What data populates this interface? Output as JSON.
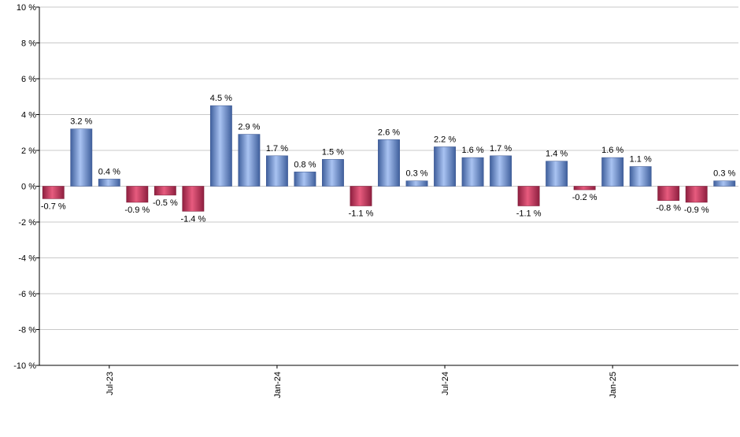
{
  "chart_data": {
    "type": "bar",
    "title": "",
    "xlabel": "",
    "ylabel": "",
    "ylim": [
      -10,
      10
    ],
    "y_ticks": [
      -10,
      -8,
      -6,
      -4,
      -2,
      0,
      2,
      4,
      6,
      8,
      10
    ],
    "y_tick_suffix": " %",
    "grid": true,
    "values": [
      -0.7,
      3.2,
      0.4,
      -0.9,
      -0.5,
      -1.4,
      4.5,
      2.9,
      1.7,
      0.8,
      1.5,
      -1.1,
      2.6,
      0.3,
      2.2,
      1.6,
      1.7,
      -1.1,
      1.4,
      -0.2,
      1.6,
      1.1,
      -0.8,
      -0.9,
      0.3
    ],
    "data_labels": [
      "-0.7 %",
      "3.2 %",
      "0.4 %",
      "-0.9 %",
      "-0.5 %",
      "-1.4 %",
      "4.5 %",
      "2.9 %",
      "1.7 %",
      "0.8 %",
      "1.5 %",
      "-1.1 %",
      "2.6 %",
      "0.3 %",
      "2.2 %",
      "1.6 %",
      "1.7 %",
      "-1.1 %",
      "1.4 %",
      "-0.2 %",
      "1.6 %",
      "1.1 %",
      "-0.8 %",
      "-0.9 %",
      "0.3 %"
    ],
    "x_ticks": [
      {
        "index": 2.5,
        "label": "Jul-23"
      },
      {
        "index": 8.5,
        "label": "Jan-24"
      },
      {
        "index": 14.5,
        "label": "Jul-24"
      },
      {
        "index": 20.5,
        "label": "Jan-25"
      }
    ],
    "colors": {
      "positive_dark": "#3f5f9c",
      "positive_light": "#a9c3f2",
      "negative_dark": "#8e1f3f",
      "negative_light": "#e75b7e",
      "grid": "#c9c9c9",
      "axis": "#000000"
    }
  }
}
